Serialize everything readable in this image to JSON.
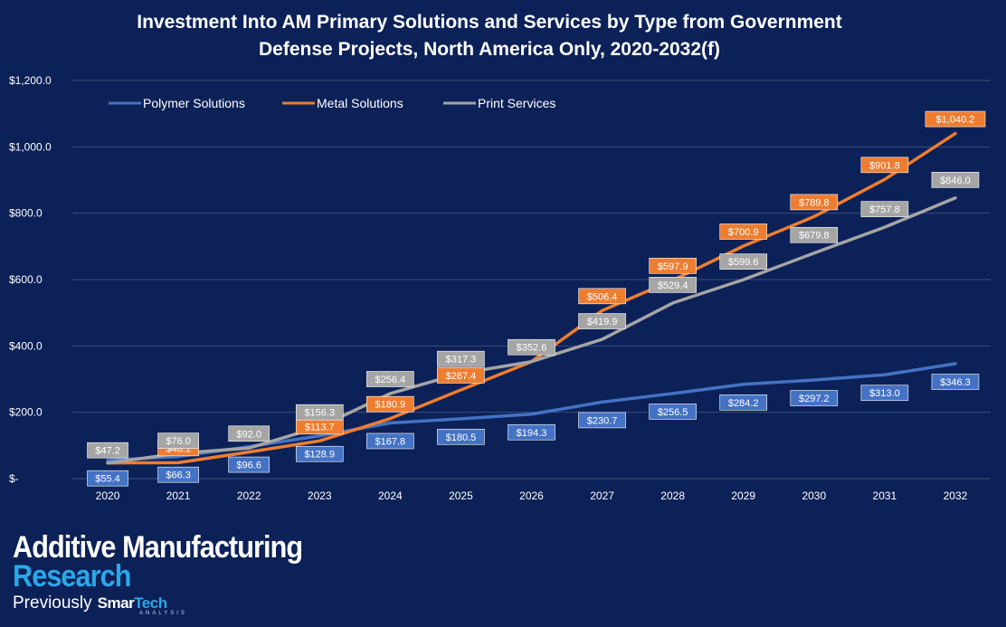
{
  "chart_data": {
    "type": "line",
    "title_line1": "Investment Into AM Primary Solutions and Services by Type from Government",
    "title_line2": "Defense Projects, North America Only, 2020-2032(f)",
    "xlabel": "",
    "ylabel": "",
    "categories": [
      "2020",
      "2021",
      "2022",
      "2023",
      "2024",
      "2025",
      "2026",
      "2027",
      "2028",
      "2029",
      "2030",
      "2031",
      "2032"
    ],
    "ylim": [
      0,
      1200
    ],
    "yticks": [
      0,
      200,
      400,
      600,
      800,
      1000,
      1200
    ],
    "ytick_labels": [
      "$-",
      "$200.0",
      "$400.0",
      "$600.0",
      "$800.0",
      "$1,000.0",
      "$1,200.0"
    ],
    "grid": true,
    "legend_position": "top-left",
    "series": [
      {
        "name": "Polymer Solutions",
        "color": "#4472c4",
        "values": [
          55.4,
          66.3,
          96.6,
          128.9,
          167.8,
          180.5,
          194.3,
          230.7,
          256.5,
          284.2,
          297.2,
          313.0,
          346.3
        ],
        "labels": [
          "$55.4",
          "$66.3",
          "$96.6",
          "$128.9",
          "$167.8",
          "$180.5",
          "$194.3",
          "$230.7",
          "$256.5",
          "$284.2",
          "$297.2",
          "$313.0",
          "$346.3"
        ]
      },
      {
        "name": "Metal Solutions",
        "color": "#ed7d31",
        "values": [
          47.2,
          48.1,
          80.0,
          113.7,
          180.9,
          267.4,
          352.6,
          506.4,
          597.9,
          700.9,
          789.8,
          901.8,
          1040.2
        ],
        "labels": [
          "",
          "$48.1",
          "",
          "$113.7",
          "$180.9",
          "$267.4",
          "",
          "$506.4",
          "$597.9",
          "$700.9",
          "$789.8",
          "$901.8",
          "$1,040.2"
        ]
      },
      {
        "name": "Print Services",
        "color": "#a5a5a5",
        "values": [
          47.2,
          76.0,
          92.0,
          156.3,
          256.4,
          317.3,
          352.6,
          419.9,
          529.4,
          599.6,
          679.8,
          757.8,
          846.0
        ],
        "labels": [
          "$47.2",
          "$76.0",
          "$92.0",
          "$156.3",
          "$256.4",
          "$317.3",
          "$352.6",
          "$419.9",
          "$529.4",
          "$599.6",
          "$679.8",
          "$757.8",
          "$846.0"
        ]
      }
    ]
  },
  "brand": {
    "line1": "Additive Manufacturing",
    "line2": "Research",
    "previously": "Previously",
    "smar": "Smar",
    "tech": "Tech",
    "analysis": "ANALYSIS"
  },
  "colors": {
    "background": "#0c2157",
    "grid": "#3a4d7e"
  }
}
